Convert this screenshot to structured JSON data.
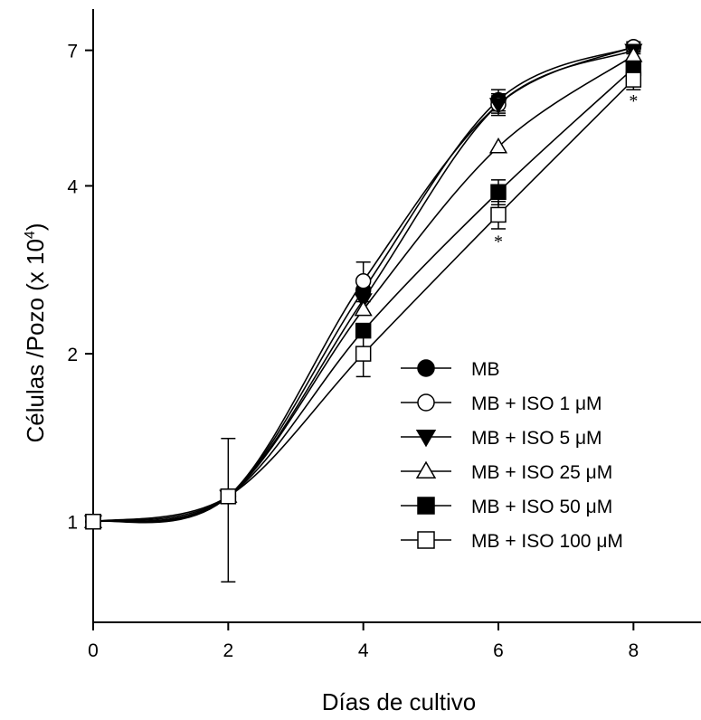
{
  "chart_data": {
    "type": "line",
    "xlabel": "Días de cultivo",
    "ylabel_main": "Células /Pozo (x 10",
    "ylabel_exp": "4",
    "ylabel_close": ")",
    "xlim": [
      0,
      9
    ],
    "ylim": [
      0.66,
      8.3
    ],
    "yscale": "log",
    "xticks": [
      "0",
      "2",
      "4",
      "6",
      "8"
    ],
    "xtick_values": [
      0,
      2,
      4,
      6,
      8
    ],
    "yticks": [
      "1",
      "2",
      "4",
      "7"
    ],
    "ytick_values": [
      1,
      2,
      4,
      7
    ],
    "x": [
      0,
      2,
      4,
      6,
      8
    ],
    "series": [
      {
        "name": "MB",
        "marker": "circle",
        "fill": "filled",
        "values": [
          1.0,
          1.11,
          2.6,
          5.7,
          7.1
        ],
        "err_up": [
          0,
          0,
          0,
          0.25,
          0.12
        ],
        "err_down": [
          0,
          0,
          0,
          0.25,
          0.12
        ]
      },
      {
        "name": "MB + ISO 1 μM",
        "marker": "circle",
        "fill": "open",
        "values": [
          1.0,
          1.11,
          2.7,
          5.6,
          7.1
        ],
        "err_up": [
          0,
          0,
          0.22,
          0.2,
          0.15
        ],
        "err_down": [
          0,
          0,
          0.22,
          0.2,
          0.15
        ]
      },
      {
        "name": "MB + ISO 5 μM",
        "marker": "triangle-down",
        "fill": "filled",
        "values": [
          1.0,
          1.11,
          2.5,
          5.6,
          7.0
        ],
        "err_up": [
          0,
          0,
          0,
          0.25,
          0.1
        ],
        "err_down": [
          0,
          0,
          0,
          0.25,
          0.1
        ]
      },
      {
        "name": "MB + ISO 25 μM",
        "marker": "triangle-up",
        "fill": "open",
        "values": [
          1.0,
          1.11,
          2.4,
          4.7,
          6.85
        ],
        "err_up": [
          0,
          0,
          0,
          0,
          0
        ],
        "err_down": [
          0,
          0,
          0,
          0,
          0
        ]
      },
      {
        "name": "MB + ISO 50 μM",
        "marker": "square",
        "fill": "filled",
        "values": [
          1.0,
          1.11,
          2.2,
          3.9,
          6.5
        ],
        "err_up": [
          0,
          0,
          0,
          0.2,
          0.2
        ],
        "err_down": [
          0,
          0,
          0,
          0.2,
          0.2
        ]
      },
      {
        "name": "MB + ISO 100 μM",
        "marker": "square",
        "fill": "open",
        "values": [
          1.0,
          1.11,
          2.0,
          3.55,
          6.2
        ],
        "err_up": [
          0,
          0.3,
          0.18,
          0.2,
          0.25
        ],
        "err_down": [
          0,
          0.33,
          0.18,
          0.2,
          0.25
        ]
      }
    ],
    "annotations": [
      {
        "text": "*",
        "x": 6,
        "y": 3.1
      },
      {
        "text": "*",
        "x": 8,
        "y": 5.55
      }
    ],
    "legend_position": "bottom-right",
    "grid": false
  }
}
